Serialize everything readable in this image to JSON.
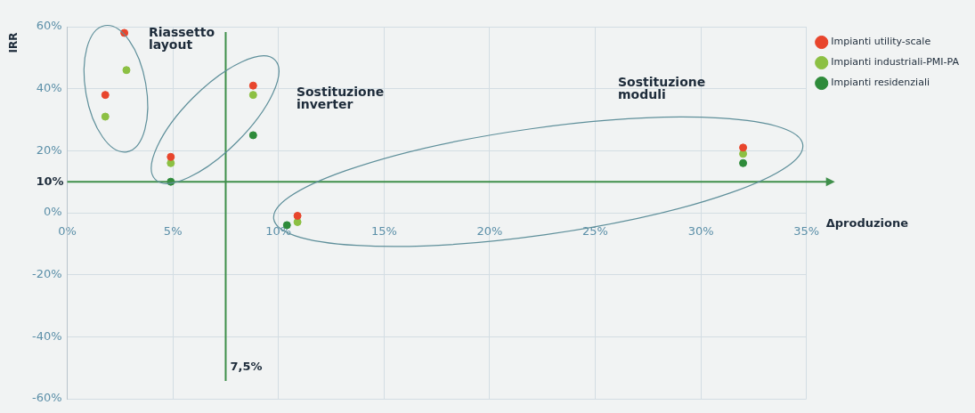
{
  "chart_data": {
    "type": "scatter",
    "xlabel": "Δproduzione",
    "ylabel": "IRR",
    "xlim": [
      0,
      35
    ],
    "xticks": [
      {
        "value": 0,
        "label": "0%"
      },
      {
        "value": 5,
        "label": "5%"
      },
      {
        "value": 10,
        "label": "10%"
      },
      {
        "value": 15,
        "label": "15%"
      },
      {
        "value": 20,
        "label": "20%"
      },
      {
        "value": 25,
        "label": "25%"
      },
      {
        "value": 30,
        "label": "30%"
      },
      {
        "value": 35,
        "label": "35%"
      }
    ],
    "ylim": [
      -60,
      60
    ],
    "yticks": [
      {
        "value": -60,
        "label": "-60%"
      },
      {
        "value": -40,
        "label": "-40%"
      },
      {
        "value": -20,
        "label": "-20%"
      },
      {
        "value": 0,
        "label": "0%"
      },
      {
        "value": 20,
        "label": "20%"
      },
      {
        "value": 40,
        "label": "40%"
      },
      {
        "value": 60,
        "label": "60%"
      }
    ],
    "grid": true,
    "legend": "top right",
    "marker": "circle",
    "series": [
      {
        "name": "Impianti utility-scale",
        "color": "#e8452c",
        "x": [
          2.7,
          1.8,
          4.9,
          8.8,
          10.9,
          32
        ],
        "values": [
          58,
          38,
          18,
          41,
          -1,
          21
        ]
      },
      {
        "name": "Impianti industriali-PMI-PA",
        "color": "#8cc043",
        "x": [
          2.8,
          1.8,
          4.9,
          8.8,
          10.9,
          32
        ],
        "values": [
          46,
          31,
          16,
          38,
          -3,
          19
        ]
      },
      {
        "name": "Impianti residenziali",
        "color": "#2e8b3a",
        "x": [
          4.9,
          8.8,
          10.4,
          32
        ],
        "values": [
          10,
          25,
          -4,
          16
        ]
      }
    ],
    "ref_lines": [
      {
        "axis": "y",
        "value": 10,
        "label": "10%",
        "color": "#3f8f4a"
      },
      {
        "axis": "x",
        "value": 7.5,
        "label": "7,5%",
        "color": "#3f8f4a"
      }
    ],
    "annotations": [
      "Riassetto layout",
      "Sostituzione inverter",
      "Sostituzione moduli"
    ]
  }
}
